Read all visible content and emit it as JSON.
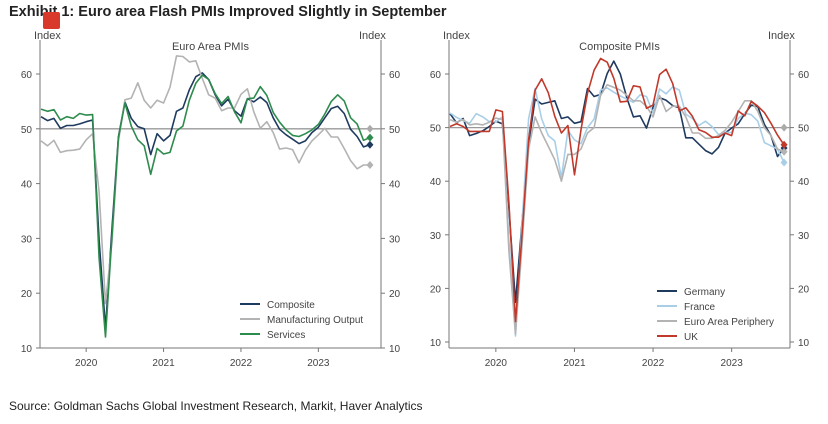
{
  "title": "Exhibit 1: Euro area Flash PMIs Improved Slightly in September",
  "source": "Source: Goldman Sachs Global Investment Research, Markit, Haver Analytics",
  "chart_data": [
    {
      "type": "line",
      "title": "Euro Area PMIs",
      "ylabel_left": "Index",
      "ylabel_right": "Index",
      "start": "2019-06",
      "end": "2023-09",
      "xticks": [
        "2020",
        "2021",
        "2022",
        "2023"
      ],
      "yticks": [
        10,
        20,
        30,
        40,
        50,
        60
      ],
      "ylim": [
        9,
        66
      ],
      "reference_line": 50,
      "legend": "bottom-right",
      "series": [
        {
          "name": "Composite",
          "color": "#1f3a5f",
          "values": [
            52.2,
            51.5,
            51.9,
            50.1,
            50.6,
            50.6,
            50.9,
            51.3,
            51.6,
            29.7,
            13.6,
            31.9,
            48.5,
            54.9,
            51.9,
            50.4,
            50.0,
            45.3,
            49.1,
            47.8,
            48.8,
            53.2,
            53.8,
            57.1,
            59.5,
            60.2,
            59.0,
            56.2,
            54.2,
            55.4,
            53.3,
            52.3,
            55.5,
            54.9,
            55.8,
            54.8,
            52.0,
            49.9,
            48.9,
            48.1,
            47.3,
            47.8,
            49.3,
            50.3,
            52.0,
            53.7,
            54.1,
            52.8,
            49.9,
            48.6,
            46.7,
            47.1
          ]
        },
        {
          "name": "Manufacturing Output",
          "color": "#b3b3b3",
          "values": [
            47.8,
            46.9,
            47.9,
            45.7,
            46.0,
            46.1,
            46.3,
            48.0,
            49.1,
            38.5,
            18.1,
            29.4,
            47.7,
            55.3,
            55.6,
            58.4,
            55.2,
            53.8,
            55.2,
            54.7,
            57.6,
            63.3,
            63.2,
            62.2,
            62.4,
            59.2,
            56.2,
            55.6,
            53.3,
            53.8,
            53.8,
            56.3,
            57.3,
            53.1,
            50.1,
            51.3,
            49.3,
            46.3,
            46.5,
            46.2,
            43.8,
            46.1,
            47.8,
            48.9,
            50.1,
            48.5,
            48.5,
            46.4,
            44.2,
            42.7,
            43.4,
            43.4
          ]
        },
        {
          "name": "Services",
          "color": "#2e8b4e",
          "values": [
            53.6,
            53.2,
            53.5,
            51.6,
            52.2,
            51.9,
            52.8,
            52.5,
            52.6,
            26.4,
            12.0,
            30.5,
            48.3,
            54.7,
            50.5,
            48.0,
            46.9,
            41.7,
            46.4,
            45.4,
            45.7,
            49.6,
            50.5,
            55.2,
            58.3,
            59.8,
            59.0,
            56.4,
            54.6,
            55.9,
            53.1,
            51.1,
            55.5,
            55.6,
            57.7,
            56.1,
            53.0,
            51.2,
            49.8,
            48.8,
            48.6,
            49.1,
            49.8,
            50.8,
            52.7,
            55.0,
            56.2,
            55.1,
            52.0,
            50.9,
            47.9,
            48.4
          ]
        }
      ]
    },
    {
      "type": "line",
      "title": "Composite PMIs",
      "ylabel_left": "Index",
      "ylabel_right": "Index",
      "start": "2019-06",
      "end": "2023-09",
      "xticks": [
        "2020",
        "2021",
        "2022",
        "2023"
      ],
      "yticks": [
        10,
        20,
        30,
        40,
        50,
        60
      ],
      "ylim": [
        9,
        65
      ],
      "reference_line": 50,
      "legend": "bottom-right",
      "series": [
        {
          "name": "Germany",
          "color": "#1f3a5f",
          "values": [
            52.6,
            50.9,
            51.7,
            48.5,
            48.9,
            49.4,
            50.2,
            51.2,
            50.7,
            35.0,
            17.4,
            32.3,
            47.0,
            55.3,
            54.4,
            54.7,
            55.0,
            51.7,
            52.0,
            50.8,
            51.1,
            57.3,
            55.8,
            56.2,
            60.1,
            62.4,
            60.0,
            55.5,
            52.0,
            52.2,
            49.9,
            53.8,
            55.6,
            55.1,
            54.1,
            53.7,
            48.1,
            48.1,
            46.9,
            45.7,
            45.1,
            46.3,
            49.0,
            49.9,
            50.7,
            52.6,
            54.2,
            53.9,
            50.6,
            48.5,
            44.6,
            46.2
          ]
        },
        {
          "name": "France",
          "color": "#a9cfe8",
          "values": [
            52.7,
            51.9,
            51.3,
            50.8,
            52.6,
            52.0,
            51.1,
            51.1,
            52.0,
            28.9,
            11.1,
            32.1,
            51.7,
            57.3,
            51.6,
            48.5,
            47.5,
            40.6,
            49.5,
            47.7,
            47.0,
            50.0,
            51.6,
            57.0,
            57.4,
            56.6,
            55.9,
            55.3,
            54.7,
            56.1,
            55.8,
            52.7,
            57.2,
            56.3,
            57.6,
            57.0,
            52.5,
            51.7,
            50.4,
            51.2,
            50.2,
            48.7,
            49.1,
            49.1,
            51.7,
            52.7,
            52.4,
            51.2,
            47.2,
            46.6,
            46.0,
            43.5
          ]
        },
        {
          "name": "Euro Area Periphery",
          "color": "#b3b3b3",
          "values": [
            51.5,
            51.0,
            51.5,
            50.5,
            50.7,
            50.5,
            51.0,
            51.8,
            51.5,
            27.0,
            11.5,
            28.0,
            46.0,
            52.0,
            49.0,
            46.5,
            44.0,
            40.0,
            45.0,
            45.0,
            46.0,
            49.0,
            50.0,
            56.0,
            58.0,
            57.5,
            57.0,
            56.0,
            55.0,
            55.0,
            54.0,
            52.0,
            56.0,
            53.0,
            54.0,
            54.0,
            52.0,
            49.0,
            49.0,
            48.0,
            48.0,
            48.5,
            49.5,
            51.0,
            53.0,
            55.0,
            55.0,
            53.0,
            50.0,
            48.5,
            46.0,
            45.5
          ]
        },
        {
          "name": "UK",
          "color": "#c0392b",
          "values": [
            50.2,
            50.7,
            50.2,
            49.3,
            49.3,
            49.3,
            49.3,
            53.3,
            53.0,
            36.0,
            13.8,
            30.0,
            47.7,
            57.0,
            59.1,
            56.5,
            52.1,
            49.0,
            50.4,
            41.2,
            49.6,
            56.4,
            60.7,
            62.9,
            62.2,
            59.2,
            54.8,
            54.9,
            57.8,
            57.6,
            53.6,
            54.2,
            59.9,
            60.9,
            58.2,
            53.1,
            53.7,
            52.1,
            49.6,
            49.1,
            48.2,
            48.2,
            49.0,
            48.5,
            53.1,
            52.2,
            54.9,
            54.0,
            52.8,
            50.8,
            48.6,
            46.8
          ]
        }
      ]
    }
  ]
}
